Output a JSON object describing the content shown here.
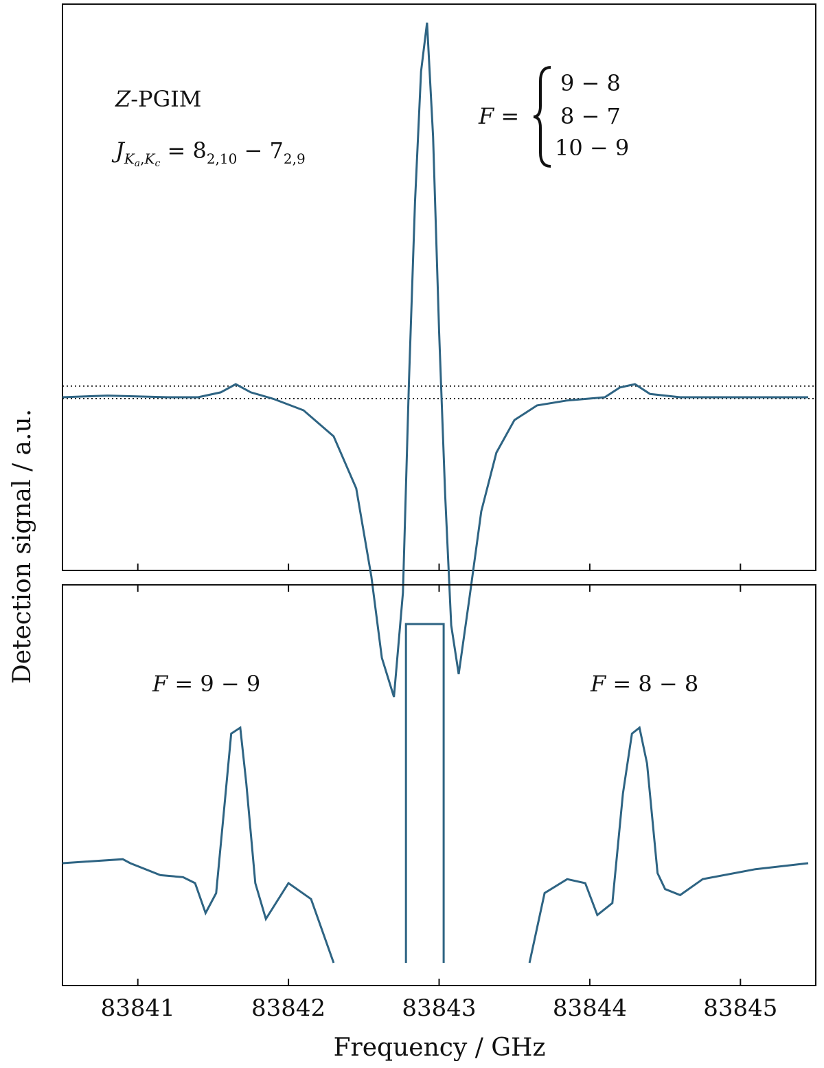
{
  "chart_data": [
    {
      "type": "line",
      "panel": "top",
      "title": "",
      "xlabel": "",
      "ylabel": "",
      "xlim": [
        83840.5,
        83845.5
      ],
      "y_ticks_shown": false,
      "grid": false,
      "color": "#2e6483",
      "reference_lines_y": [
        0.03,
        0.0
      ],
      "series": [
        {
          "x": [
            83840.5,
            83840.8,
            83841.2,
            83841.4,
            83841.55,
            83841.65,
            83841.75,
            83841.9,
            83842.1,
            83842.3,
            83842.45,
            83842.55,
            83842.62,
            83842.7,
            83842.76,
            83842.8,
            83842.84,
            83842.88,
            83842.92,
            83842.96,
            83843.0,
            83843.04,
            83843.08,
            83843.13,
            83843.2,
            83843.28,
            83843.38,
            83843.5,
            83843.65,
            83843.85,
            83844.1,
            83844.2,
            83844.3,
            83844.4,
            83844.6,
            83845.0,
            83845.45
          ],
          "y": [
            0.0,
            0.005,
            0.0,
            0.0,
            0.015,
            0.04,
            0.015,
            -0.005,
            -0.04,
            -0.12,
            -0.28,
            -0.55,
            -0.8,
            -0.92,
            -0.6,
            0.05,
            0.6,
            1.0,
            1.15,
            0.8,
            0.2,
            -0.3,
            -0.7,
            -0.85,
            -0.62,
            -0.35,
            -0.17,
            -0.07,
            -0.025,
            -0.01,
            0.0,
            0.03,
            0.04,
            0.01,
            0.0,
            0.0,
            0.0
          ]
        }
      ],
      "annotations": [
        "Z-PGIM",
        "J_{Ka,Kc} = 8_{2,10} − 7_{2,9}",
        "F = { 9 − 8 / 8 − 7 / 10 − 9"
      ]
    },
    {
      "type": "line",
      "panel": "bottom",
      "title": "",
      "xlabel": "Frequency / GHz",
      "ylabel": "Detection signal / a.u.",
      "xlim": [
        83840.5,
        83845.5
      ],
      "x_ticks": [
        83841,
        83842,
        83843,
        83844,
        83845
      ],
      "y_ticks_shown": false,
      "grid": false,
      "color": "#2e6483",
      "series": [
        {
          "x": [
            83840.5,
            83840.9,
            83840.95,
            83841.15,
            83841.3,
            83841.38,
            83841.45,
            83841.52,
            83841.57,
            83841.62,
            83841.68,
            83841.72,
            83841.78,
            83841.85,
            83842.0,
            83842.15,
            83842.3
          ],
          "y": [
            0.1,
            0.12,
            0.1,
            0.04,
            0.03,
            0.0,
            -0.15,
            -0.05,
            0.35,
            0.75,
            0.78,
            0.5,
            0.0,
            -0.18,
            0.0,
            -0.08,
            -0.4
          ]
        },
        {
          "x": [
            83842.78,
            83842.78,
            83843.03,
            83843.03
          ],
          "y": [
            -0.4,
            1.3,
            1.3,
            -0.4
          ]
        },
        {
          "x": [
            83843.6,
            83843.7,
            83843.85,
            83843.97,
            83844.05,
            83844.15,
            83844.22,
            83844.28,
            83844.33,
            83844.38,
            83844.45,
            83844.5,
            83844.6,
            83844.75,
            83845.1,
            83845.45
          ],
          "y": [
            -0.4,
            -0.05,
            0.02,
            0.0,
            -0.16,
            -0.1,
            0.45,
            0.75,
            0.78,
            0.6,
            0.05,
            -0.03,
            -0.06,
            0.02,
            0.07,
            0.1
          ]
        }
      ],
      "annotations": [
        "F = 9 − 9",
        "F = 8 − 8"
      ]
    }
  ]
}
